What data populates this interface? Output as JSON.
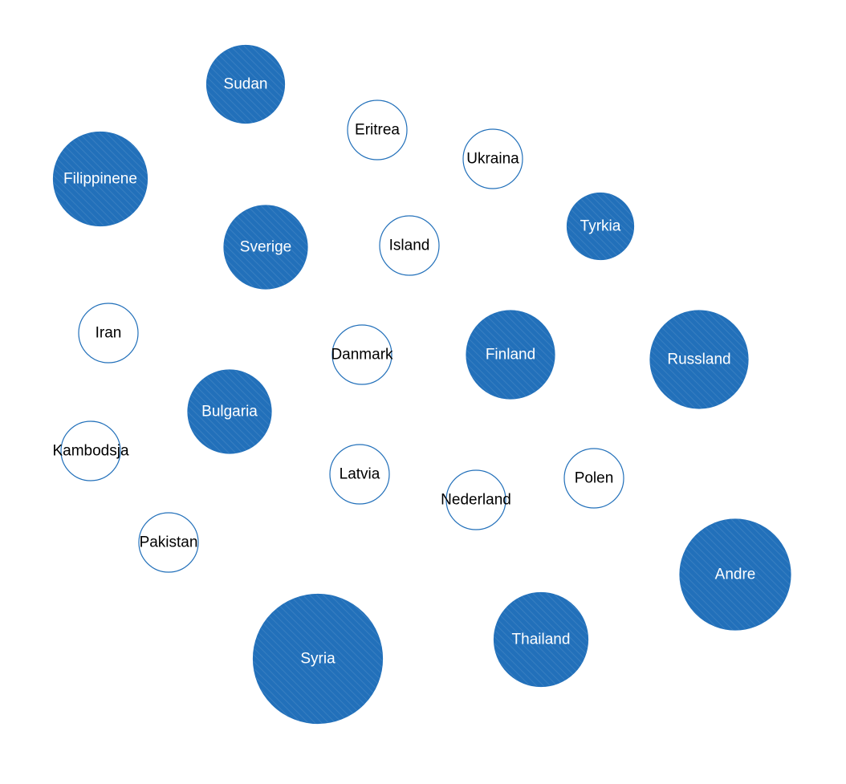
{
  "colors": {
    "filled": "#2270BA",
    "outlined_fill": "#FFFFFF",
    "stroke": "#2270BA",
    "label_on_filled": "#FFFFFF",
    "label_on_outlined": "#000000"
  },
  "chart_data": {
    "type": "bubble",
    "title": "",
    "legend": "none",
    "style_note_categories": [
      "filled",
      "outlined"
    ],
    "bubbles": [
      {
        "label": "Sudan",
        "style": "filled",
        "size": 96
      },
      {
        "label": "Filippinene",
        "style": "filled",
        "size": 116
      },
      {
        "label": "Eritrea",
        "style": "outlined",
        "size": 73
      },
      {
        "label": "Ukraina",
        "style": "outlined",
        "size": 73
      },
      {
        "label": "Sverige",
        "style": "filled",
        "size": 103
      },
      {
        "label": "Island",
        "style": "outlined",
        "size": 73
      },
      {
        "label": "Tyrkia",
        "style": "filled",
        "size": 82
      },
      {
        "label": "Iran",
        "style": "outlined",
        "size": 73
      },
      {
        "label": "Danmark",
        "style": "outlined",
        "size": 73
      },
      {
        "label": "Finland",
        "style": "filled",
        "size": 109
      },
      {
        "label": "Russland",
        "style": "filled",
        "size": 121
      },
      {
        "label": "Bulgaria",
        "style": "filled",
        "size": 103
      },
      {
        "label": "Kambodsja",
        "style": "outlined",
        "size": 73
      },
      {
        "label": "Latvia",
        "style": "outlined",
        "size": 73
      },
      {
        "label": "Nederland",
        "style": "outlined",
        "size": 73
      },
      {
        "label": "Polen",
        "style": "outlined",
        "size": 73
      },
      {
        "label": "Pakistan",
        "style": "outlined",
        "size": 73
      },
      {
        "label": "Andre",
        "style": "filled",
        "size": 137
      },
      {
        "label": "Syria",
        "style": "filled",
        "size": 160
      },
      {
        "label": "Thailand",
        "style": "filled",
        "size": 116
      }
    ]
  }
}
